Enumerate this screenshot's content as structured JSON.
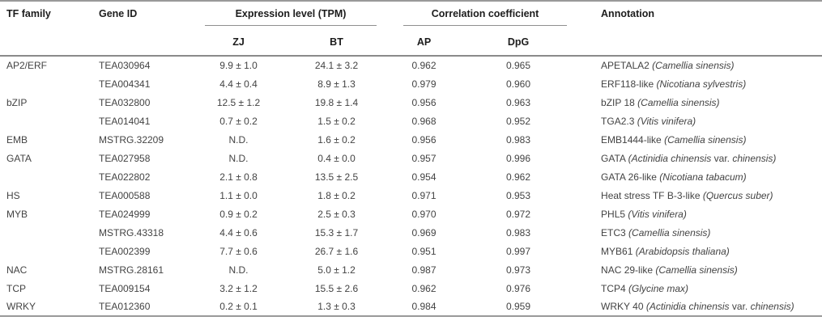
{
  "colors": {
    "rule-strong": "#999999",
    "rule-mid": "#8a8a8a",
    "rule-group": "#8f8f8f",
    "header-text": "#1c1c1c",
    "body-text": "#434343",
    "page-bg": "#ffffff"
  },
  "table": {
    "headers": {
      "tf_family": "TF family",
      "gene_id": "Gene ID",
      "expression_group": "Expression level (TPM)",
      "correlation_group": "Correlation coefficient",
      "zj": "ZJ",
      "bt": "BT",
      "ap": "AP",
      "dpg": "DpG",
      "annotation": "Annotation"
    },
    "rows": [
      {
        "tf_family": "AP2/ERF",
        "gene_id": "TEA030964",
        "zj": "9.9 ± 1.0",
        "bt": "24.1 ± 3.2",
        "ap": "0.962",
        "dpg": "0.965",
        "annotation": [
          {
            "t": "APETALA2 "
          },
          {
            "t": "(Camellia sinensis)",
            "i": true
          }
        ]
      },
      {
        "tf_family": "",
        "gene_id": "TEA004341",
        "zj": "4.4 ± 0.4",
        "bt": "8.9 ± 1.3",
        "ap": "0.979",
        "dpg": "0.960",
        "annotation": [
          {
            "t": "ERF118-like "
          },
          {
            "t": "(Nicotiana sylvestris)",
            "i": true
          }
        ]
      },
      {
        "tf_family": "bZIP",
        "gene_id": "TEA032800",
        "zj": "12.5 ± 1.2",
        "bt": "19.8 ± 1.4",
        "ap": "0.956",
        "dpg": "0.963",
        "annotation": [
          {
            "t": "bZIP 18 "
          },
          {
            "t": "(Camellia sinensis)",
            "i": true
          }
        ]
      },
      {
        "tf_family": "",
        "gene_id": "TEA014041",
        "zj": "0.7 ± 0.2",
        "bt": "1.5 ± 0.2",
        "ap": "0.968",
        "dpg": "0.952",
        "annotation": [
          {
            "t": "TGA2.3 "
          },
          {
            "t": "(Vitis vinifera)",
            "i": true
          }
        ]
      },
      {
        "tf_family": "EMB",
        "gene_id": "MSTRG.32209",
        "zj": "N.D.",
        "bt": "1.6 ± 0.2",
        "ap": "0.956",
        "dpg": "0.983",
        "annotation": [
          {
            "t": "EMB1444-like "
          },
          {
            "t": "(Camellia sinensis)",
            "i": true
          }
        ]
      },
      {
        "tf_family": "GATA",
        "gene_id": "TEA027958",
        "zj": "N.D.",
        "bt": "0.4 ± 0.0",
        "ap": "0.957",
        "dpg": "0.996",
        "annotation": [
          {
            "t": "GATA "
          },
          {
            "t": "(Actinidia chinensis",
            "i": true
          },
          {
            "t": " var. "
          },
          {
            "t": "chinensis)",
            "i": true
          }
        ]
      },
      {
        "tf_family": "",
        "gene_id": "TEA022802",
        "zj": "2.1 ± 0.8",
        "bt": "13.5 ± 2.5",
        "ap": "0.954",
        "dpg": "0.962",
        "annotation": [
          {
            "t": "GATA 26-like "
          },
          {
            "t": "(Nicotiana tabacum)",
            "i": true
          }
        ]
      },
      {
        "tf_family": "HS",
        "gene_id": "TEA000588",
        "zj": "1.1 ± 0.0",
        "bt": "1.8 ± 0.2",
        "ap": "0.971",
        "dpg": "0.953",
        "annotation": [
          {
            "t": "Heat stress TF B-3-like "
          },
          {
            "t": "(Quercus suber)",
            "i": true
          }
        ]
      },
      {
        "tf_family": "MYB",
        "gene_id": "TEA024999",
        "zj": "0.9 ± 0.2",
        "bt": "2.5 ± 0.3",
        "ap": "0.970",
        "dpg": "0.972",
        "annotation": [
          {
            "t": "PHL5 "
          },
          {
            "t": "(Vitis vinifera)",
            "i": true
          }
        ]
      },
      {
        "tf_family": "",
        "gene_id": "MSTRG.43318",
        "zj": "4.4 ± 0.6",
        "bt": "15.3 ± 1.7",
        "ap": "0.969",
        "dpg": "0.983",
        "annotation": [
          {
            "t": "ETC3 "
          },
          {
            "t": "(Camellia sinensis)",
            "i": true
          }
        ]
      },
      {
        "tf_family": "",
        "gene_id": "TEA002399",
        "zj": "7.7 ± 0.6",
        "bt": "26.7 ± 1.6",
        "ap": "0.951",
        "dpg": "0.997",
        "annotation": [
          {
            "t": "MYB61 "
          },
          {
            "t": "(Arabidopsis thaliana)",
            "i": true
          }
        ]
      },
      {
        "tf_family": "NAC",
        "gene_id": "MSTRG.28161",
        "zj": "N.D.",
        "bt": "5.0 ± 1.2",
        "ap": "0.987",
        "dpg": "0.973",
        "annotation": [
          {
            "t": "NAC 29-like "
          },
          {
            "t": "(Camellia sinensis)",
            "i": true
          }
        ]
      },
      {
        "tf_family": "TCP",
        "gene_id": "TEA009154",
        "zj": "3.2 ± 1.2",
        "bt": "15.5 ± 2.6",
        "ap": "0.962",
        "dpg": "0.976",
        "annotation": [
          {
            "t": "TCP4 "
          },
          {
            "t": "(Glycine max)",
            "i": true
          }
        ]
      },
      {
        "tf_family": "WRKY",
        "gene_id": "TEA012360",
        "zj": "0.2 ± 0.1",
        "bt": "1.3 ± 0.3",
        "ap": "0.984",
        "dpg": "0.959",
        "annotation": [
          {
            "t": "WRKY 40 "
          },
          {
            "t": "(Actinidia chinensis",
            "i": true
          },
          {
            "t": " var. "
          },
          {
            "t": "chinensis)",
            "i": true
          }
        ]
      }
    ]
  }
}
